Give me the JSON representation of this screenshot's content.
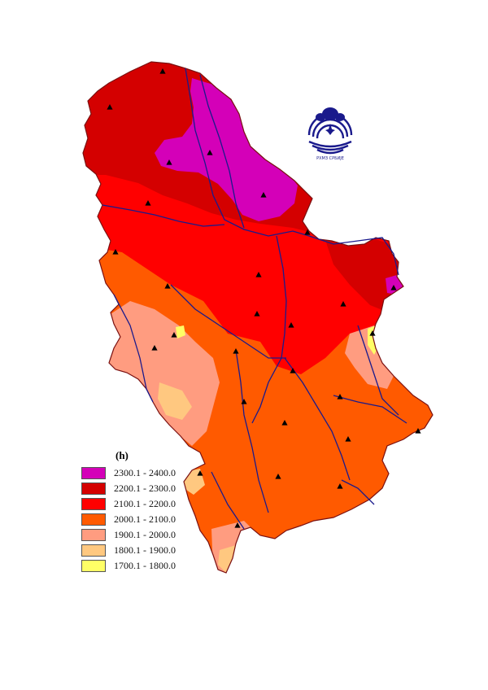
{
  "legend": {
    "unit": "(h)",
    "classes": [
      {
        "label": "2300.1 - 2400.0",
        "color": "#d400b8"
      },
      {
        "label": "2200.1 - 2300.0",
        "color": "#d40000"
      },
      {
        "label": "2100.1 - 2200.0",
        "color": "#ff0000"
      },
      {
        "label": "2000.1 - 2100.0",
        "color": "#ff5a00"
      },
      {
        "label": "1900.1 - 2000.0",
        "color": "#ff9c80"
      },
      {
        "label": "1800.1 - 1900.0",
        "color": "#ffc880"
      },
      {
        "label": "1700.1 - 1800.0",
        "color": "#ffff66"
      }
    ]
  },
  "logo": {
    "text": "РХМЗ СРБИЈЕ",
    "color": "#1a1a8c"
  },
  "map": {
    "river_color": "#1a1a8c",
    "station_icon": "triangle-station-icon"
  }
}
